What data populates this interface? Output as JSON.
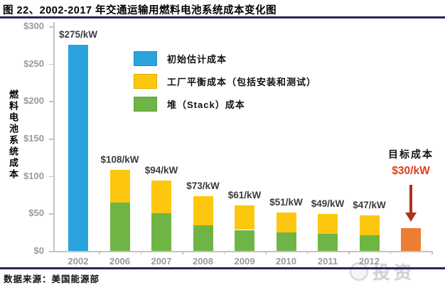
{
  "figure_title": "图 22、2002-2017 年交通运输用燃料电池系统成本变化图",
  "source_note": "数据来源：美国能源部",
  "watermark_text": "投资",
  "colors": {
    "initial_estimate_blue": "#29A3DC",
    "balance_of_plant_yellow": "#FCC70E",
    "stack_green": "#6FB546",
    "target_orange": "#EE7C31",
    "arrow_red": "#B03020",
    "target_value_red": "#E5391B",
    "axis_gray": "#9a9a9a",
    "rule_navy": "#26265E"
  },
  "legend": [
    {
      "label": "初始估计成本",
      "color": "#29A3DC"
    },
    {
      "label": "工厂平衡成本（包括安装和测试）",
      "color": "#FCC70E"
    },
    {
      "label": "堆（Stack）成本",
      "color": "#6FB546"
    }
  ],
  "target": {
    "label": "目标成本",
    "value_label": "$30/kW"
  },
  "chart_data": {
    "type": "stacked-bar",
    "title": "2002-2017 年交通运输用燃料电池系统成本变化图",
    "ylabel": "燃料电池系统成本",
    "ylim": [
      0,
      300
    ],
    "grid": false,
    "legend_position": "upper-center-left",
    "y_ticks": [
      {
        "value": 300,
        "label": "$300"
      },
      {
        "value": 250,
        "label": "$250"
      },
      {
        "value": 200,
        "label": "$200"
      },
      {
        "value": 150,
        "label": "$150"
      },
      {
        "value": 100,
        "label": "$100"
      },
      {
        "value": 50,
        "label": "$50"
      },
      {
        "value": 0,
        "label": "$0"
      }
    ],
    "categories": [
      "2002",
      "2006",
      "2007",
      "2008",
      "2009",
      "2010",
      "2011",
      "2012",
      ""
    ],
    "series": [
      {
        "name": "初始估计成本",
        "color": "#29A3DC",
        "values": [
          275,
          0,
          0,
          0,
          0,
          0,
          0,
          0,
          0
        ]
      },
      {
        "name": "堆（Stack）成本",
        "color": "#6FB546",
        "values": [
          0,
          65,
          50,
          34,
          28,
          25,
          23,
          21,
          0
        ]
      },
      {
        "name": "工厂平衡成本（包括安装和测试）",
        "color": "#FCC70E",
        "values": [
          0,
          43,
          44,
          39,
          33,
          26,
          26,
          26,
          0
        ]
      },
      {
        "name": "目标成本",
        "color": "#EE7C31",
        "values": [
          0,
          0,
          0,
          0,
          0,
          0,
          0,
          0,
          30
        ]
      }
    ],
    "totals": [
      275,
      108,
      94,
      73,
      61,
      51,
      49,
      47,
      30
    ],
    "bar_labels": [
      "$275/kW",
      "$108/kW",
      "$94/kW",
      "$73/kW",
      "$61/kW",
      "$51/kW",
      "$49/kW",
      "$47/kW",
      ""
    ]
  }
}
